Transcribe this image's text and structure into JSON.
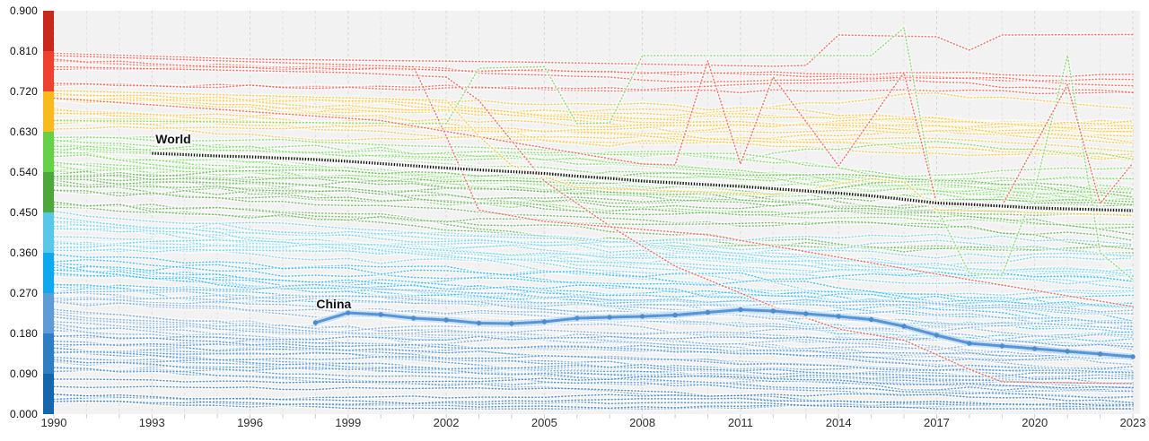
{
  "page": {
    "background": "#ffffff",
    "plot_background": "#f2f2f2",
    "grid_color": "#dedede"
  },
  "chart_data": {
    "type": "line",
    "title": "",
    "xlabel": "",
    "ylabel": "",
    "xlim": [
      1990,
      2023
    ],
    "ylim": [
      0.0,
      0.9
    ],
    "grid": "vertical-dashed-per-year",
    "legend_position": "inline-labels",
    "x_ticks": [
      1990,
      1993,
      1996,
      1999,
      2002,
      2005,
      2008,
      2011,
      2014,
      2017,
      2020,
      2023
    ],
    "y_ticks": [
      {
        "label": "0.900",
        "value": 0.9
      },
      {
        "label": "0.810",
        "value": 0.81
      },
      {
        "label": "0.720",
        "value": 0.72
      },
      {
        "label": "0.630",
        "value": 0.63
      },
      {
        "label": "0.540",
        "value": 0.54
      },
      {
        "label": "0.450",
        "value": 0.45
      },
      {
        "label": "0.360",
        "value": 0.36
      },
      {
        "label": "0.270",
        "value": 0.27
      },
      {
        "label": "0.180",
        "value": 0.18
      },
      {
        "label": "0.090",
        "value": 0.09
      },
      {
        "label": "0.000",
        "value": 0.0
      }
    ],
    "color_scale": [
      {
        "min": 0.81,
        "max": 0.9,
        "color": "#c9291c"
      },
      {
        "min": 0.72,
        "max": 0.81,
        "color": "#ee4130"
      },
      {
        "min": 0.63,
        "max": 0.72,
        "color": "#f8ba1c"
      },
      {
        "min": 0.54,
        "max": 0.63,
        "color": "#65d148"
      },
      {
        "min": 0.45,
        "max": 0.54,
        "color": "#4da73a"
      },
      {
        "min": 0.36,
        "max": 0.45,
        "color": "#58c7ea"
      },
      {
        "min": 0.27,
        "max": 0.36,
        "color": "#0ca9ef"
      },
      {
        "min": 0.18,
        "max": 0.27,
        "color": "#5f9bd6"
      },
      {
        "min": 0.09,
        "max": 0.18,
        "color": "#2d7ec3"
      },
      {
        "min": 0.0,
        "max": 0.09,
        "color": "#1566ad"
      }
    ],
    "series": [
      {
        "name": "World",
        "color": "#161616",
        "line_style": "dotted-bold",
        "start_year": 1993,
        "values": [
          0.582,
          0.579,
          0.576,
          0.574,
          0.571,
          0.568,
          0.564,
          0.559,
          0.554,
          0.549,
          0.545,
          0.541,
          0.537,
          0.531,
          0.526,
          0.52,
          0.516,
          0.512,
          0.508,
          0.503,
          0.498,
          0.493,
          0.487,
          0.479,
          0.471,
          0.468,
          0.464,
          0.46,
          0.458,
          0.456,
          0.454
        ]
      },
      {
        "name": "China",
        "color": "#5596d8",
        "line_style": "solid-with-markers",
        "start_year": 1998,
        "values": [
          0.204,
          0.226,
          0.222,
          0.214,
          0.21,
          0.203,
          0.202,
          0.206,
          0.214,
          0.216,
          0.218,
          0.221,
          0.227,
          0.233,
          0.23,
          0.224,
          0.218,
          0.211,
          0.196,
          0.176,
          0.158,
          0.152,
          0.146,
          0.14,
          0.134,
          0.128
        ]
      }
    ],
    "feature_lines": [
      {
        "color": "#ee4130",
        "points": [
          [
            1990,
            0.805
          ],
          [
            1996,
            0.792
          ],
          [
            2004,
            0.786
          ],
          [
            2012,
            0.776
          ],
          [
            2013,
            0.778
          ],
          [
            2014,
            0.846
          ],
          [
            2017,
            0.842
          ],
          [
            2018,
            0.812
          ],
          [
            2019,
            0.846
          ],
          [
            2023,
            0.847
          ]
        ]
      },
      {
        "color": "#ee4130",
        "points": [
          [
            1990,
            0.775
          ],
          [
            1999,
            0.762
          ],
          [
            2002,
            0.752
          ],
          [
            2003,
            0.7
          ],
          [
            2004,
            0.61
          ],
          [
            2005,
            0.52
          ],
          [
            2007,
            0.42
          ],
          [
            2009,
            0.33
          ],
          [
            2012,
            0.24
          ],
          [
            2014,
            0.19
          ],
          [
            2016,
            0.165
          ],
          [
            2018,
            0.1
          ],
          [
            2019,
            0.072
          ],
          [
            2023,
            0.068
          ]
        ]
      },
      {
        "color": "#ee4130",
        "points": [
          [
            1990,
            0.8
          ],
          [
            2001,
            0.775
          ],
          [
            2002,
            0.62
          ],
          [
            2003,
            0.455
          ],
          [
            2005,
            0.43
          ],
          [
            2010,
            0.4
          ],
          [
            2014,
            0.35
          ],
          [
            2018,
            0.3
          ],
          [
            2023,
            0.24
          ]
        ]
      },
      {
        "color": "#65d148",
        "points": [
          [
            1990,
            0.655
          ],
          [
            2002,
            0.648
          ],
          [
            2003,
            0.772
          ],
          [
            2005,
            0.775
          ],
          [
            2006,
            0.648
          ],
          [
            2007,
            0.65
          ],
          [
            2008,
            0.8
          ],
          [
            2015,
            0.8
          ],
          [
            2016,
            0.862
          ],
          [
            2017,
            0.46
          ],
          [
            2018,
            0.315
          ],
          [
            2019,
            0.31
          ],
          [
            2020,
            0.5
          ],
          [
            2021,
            0.8
          ],
          [
            2022,
            0.36
          ],
          [
            2023,
            0.3
          ]
        ]
      },
      {
        "color": "#ee4130",
        "points": [
          [
            1990,
            0.705
          ],
          [
            2000,
            0.655
          ],
          [
            2008,
            0.558
          ],
          [
            2009,
            0.556
          ],
          [
            2010,
            0.788
          ],
          [
            2011,
            0.558
          ],
          [
            2012,
            0.752
          ],
          [
            2014,
            0.554
          ],
          [
            2016,
            0.762
          ],
          [
            2017,
            0.47
          ],
          [
            2019,
            0.465
          ],
          [
            2021,
            0.735
          ],
          [
            2022,
            0.47
          ],
          [
            2023,
            0.56
          ]
        ]
      },
      {
        "color": "#f8ba1c",
        "points": [
          [
            1990,
            0.722
          ],
          [
            2002,
            0.7
          ],
          [
            2003,
            0.62
          ],
          [
            2004,
            0.555
          ],
          [
            2006,
            0.505
          ],
          [
            2012,
            0.49
          ],
          [
            2015,
            0.525
          ],
          [
            2016,
            0.518
          ],
          [
            2017,
            0.455
          ],
          [
            2020,
            0.45
          ],
          [
            2023,
            0.443
          ]
        ]
      }
    ],
    "background_countries": {
      "seed": 7,
      "style": "dotted",
      "bands": [
        {
          "color": "#ee4130",
          "count": 5,
          "v0": [
            0.735,
            0.805
          ],
          "decline": [
            0.015,
            0.06
          ],
          "wiggle": 0.008
        },
        {
          "color": "#f8ba1c",
          "count": 16,
          "v0": [
            0.635,
            0.72
          ],
          "decline": [
            0.02,
            0.1
          ],
          "wiggle": 0.01
        },
        {
          "color": "#65d148",
          "count": 18,
          "v0": [
            0.545,
            0.63
          ],
          "decline": [
            0.03,
            0.13
          ],
          "wiggle": 0.012
        },
        {
          "color": "#4da73a",
          "count": 16,
          "v0": [
            0.455,
            0.54
          ],
          "decline": [
            0.03,
            0.14
          ],
          "wiggle": 0.012
        },
        {
          "color": "#58c7ea",
          "count": 16,
          "v0": [
            0.365,
            0.45
          ],
          "decline": [
            0.03,
            0.15
          ],
          "wiggle": 0.012
        },
        {
          "color": "#0ca9ef",
          "count": 14,
          "v0": [
            0.275,
            0.36
          ],
          "decline": [
            0.04,
            0.15
          ],
          "wiggle": 0.012
        },
        {
          "color": "#5f9bd6",
          "count": 18,
          "v0": [
            0.185,
            0.27
          ],
          "decline": [
            0.04,
            0.14
          ],
          "wiggle": 0.01
        },
        {
          "color": "#2d7ec3",
          "count": 20,
          "v0": [
            0.095,
            0.18
          ],
          "decline": [
            0.02,
            0.09
          ],
          "wiggle": 0.008
        },
        {
          "color": "#1566ad",
          "count": 7,
          "v0": [
            0.03,
            0.09
          ],
          "decline": [
            0.0,
            0.04
          ],
          "wiggle": 0.006
        }
      ]
    }
  }
}
